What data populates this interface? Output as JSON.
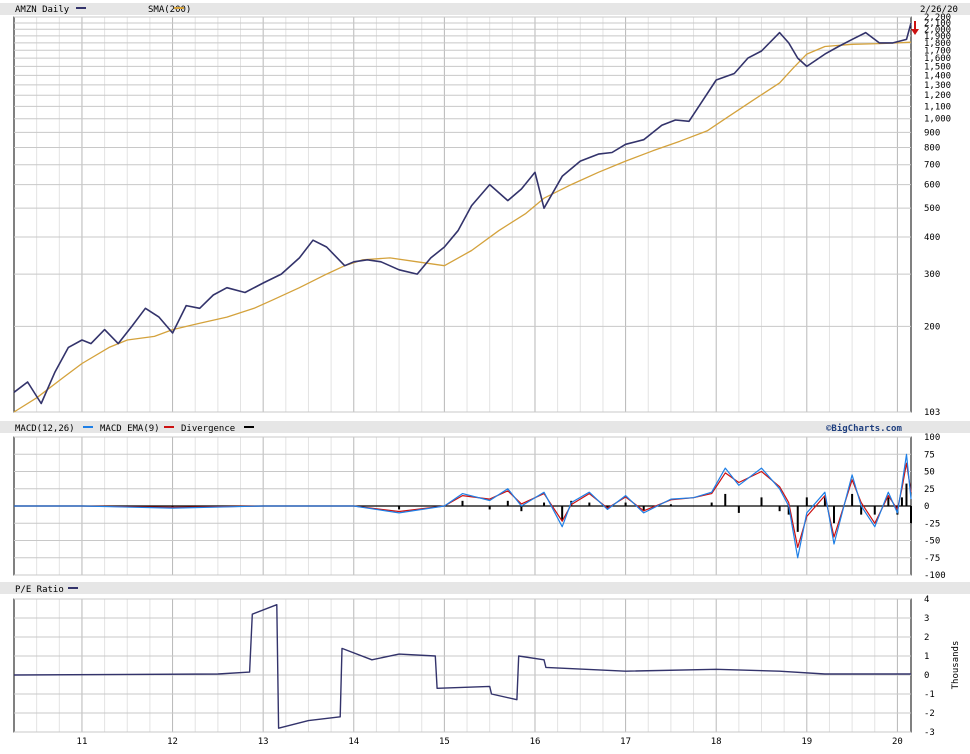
{
  "chart_data": [
    {
      "panel": "price",
      "type": "line",
      "scale": "log",
      "legend": [
        {
          "label": "AMZN Daily",
          "color": "#33336b"
        },
        {
          "label": "SMA(200)",
          "color": "#d4a23c"
        }
      ],
      "date_label": "2/26/20",
      "x_ticks": [
        "11",
        "12",
        "13",
        "14",
        "15",
        "16",
        "17",
        "18",
        "19",
        "20"
      ],
      "y_ticks": [
        "2,200",
        "2,100",
        "2,000",
        "1,900",
        "1,800",
        "1,700",
        "1,600",
        "1,500",
        "1,400",
        "1,300",
        "1,200",
        "1,100",
        "1,000",
        "900",
        "800",
        "700",
        "600",
        "500",
        "400",
        "300",
        "200",
        "103"
      ],
      "ylim": [
        103,
        2200
      ],
      "series": [
        {
          "name": "AMZN Daily",
          "color": "#33336b",
          "x": [
            2010.25,
            2010.4,
            2010.55,
            2010.7,
            2010.85,
            2011.0,
            2011.1,
            2011.25,
            2011.4,
            2011.55,
            2011.7,
            2011.85,
            2012.0,
            2012.15,
            2012.3,
            2012.45,
            2012.6,
            2012.8,
            2013.0,
            2013.2,
            2013.4,
            2013.55,
            2013.7,
            2013.9,
            2014.0,
            2014.15,
            2014.3,
            2014.5,
            2014.7,
            2014.85,
            2015.0,
            2015.15,
            2015.3,
            2015.5,
            2015.7,
            2015.85,
            2016.0,
            2016.1,
            2016.3,
            2016.5,
            2016.7,
            2016.85,
            2017.0,
            2017.2,
            2017.4,
            2017.55,
            2017.7,
            2017.85,
            2018.0,
            2018.2,
            2018.35,
            2018.5,
            2018.7,
            2018.8,
            2018.9,
            2019.0,
            2019.2,
            2019.35,
            2019.5,
            2019.65,
            2019.8,
            2019.95,
            2020.1,
            2020.15
          ],
          "y": [
            120,
            130,
            110,
            140,
            170,
            180,
            175,
            195,
            175,
            200,
            230,
            215,
            190,
            235,
            230,
            255,
            270,
            260,
            280,
            300,
            340,
            390,
            370,
            320,
            330,
            335,
            330,
            310,
            300,
            340,
            370,
            420,
            510,
            600,
            530,
            580,
            660,
            500,
            640,
            720,
            760,
            770,
            820,
            850,
            950,
            990,
            980,
            1150,
            1350,
            1420,
            1600,
            1690,
            1950,
            1800,
            1600,
            1500,
            1650,
            1750,
            1850,
            1950,
            1800,
            1800,
            1850,
            2100
          ]
        },
        {
          "name": "SMA(200)",
          "color": "#d4a23c",
          "x": [
            2010.25,
            2010.5,
            2010.8,
            2011.0,
            2011.3,
            2011.5,
            2011.8,
            2012.0,
            2012.3,
            2012.6,
            2012.9,
            2013.1,
            2013.4,
            2013.7,
            2013.9,
            2014.1,
            2014.4,
            2014.7,
            2015.0,
            2015.3,
            2015.6,
            2015.9,
            2016.1,
            2016.4,
            2016.7,
            2017.0,
            2017.3,
            2017.6,
            2017.9,
            2018.1,
            2018.4,
            2018.7,
            2018.85,
            2019.0,
            2019.2,
            2019.5,
            2019.8,
            2020.0,
            2020.15
          ],
          "y": [
            103,
            115,
            135,
            150,
            170,
            180,
            185,
            195,
            205,
            215,
            230,
            245,
            270,
            300,
            320,
            335,
            340,
            330,
            320,
            360,
            420,
            480,
            540,
            600,
            660,
            720,
            780,
            840,
            910,
            1000,
            1150,
            1320,
            1480,
            1650,
            1750,
            1780,
            1790,
            1800,
            1810
          ]
        }
      ]
    },
    {
      "panel": "macd",
      "type": "line",
      "legend": [
        {
          "label": "MACD(12,26)",
          "color": "#1e7fe6"
        },
        {
          "label": "MACD EMA(9)",
          "color": "#cc1111"
        },
        {
          "label": "Divergence",
          "color": "#000000"
        }
      ],
      "brand": "©BigCharts.com",
      "y_ticks": [
        "100",
        "75",
        "50",
        "25",
        "0",
        "-25",
        "-50",
        "-75",
        "-100"
      ],
      "ylim": [
        -100,
        100
      ],
      "series": [
        {
          "name": "MACD(12,26)",
          "color": "#1e7fe6",
          "x": [
            2010.25,
            2011.0,
            2012.0,
            2013.0,
            2014.0,
            2014.5,
            2015.0,
            2015.2,
            2015.5,
            2015.7,
            2015.85,
            2016.1,
            2016.3,
            2016.4,
            2016.6,
            2016.8,
            2017.0,
            2017.2,
            2017.5,
            2017.75,
            2017.95,
            2018.1,
            2018.25,
            2018.5,
            2018.7,
            2018.8,
            2018.9,
            2019.0,
            2019.2,
            2019.3,
            2019.5,
            2019.6,
            2019.75,
            2019.9,
            2020.0,
            2020.05,
            2020.1,
            2020.15
          ],
          "y": [
            0,
            0,
            -3,
            0,
            0,
            -10,
            0,
            18,
            8,
            25,
            0,
            20,
            -30,
            5,
            20,
            -5,
            15,
            -10,
            10,
            12,
            20,
            55,
            30,
            55,
            25,
            0,
            -75,
            -10,
            20,
            -55,
            45,
            0,
            -30,
            20,
            -10,
            30,
            75,
            10
          ]
        },
        {
          "name": "MACD EMA(9)",
          "color": "#cc1111",
          "x": [
            2010.25,
            2011.0,
            2012.0,
            2013.0,
            2014.0,
            2014.5,
            2015.0,
            2015.2,
            2015.5,
            2015.7,
            2015.85,
            2016.1,
            2016.3,
            2016.4,
            2016.6,
            2016.8,
            2017.0,
            2017.2,
            2017.5,
            2017.75,
            2017.95,
            2018.1,
            2018.25,
            2018.5,
            2018.7,
            2018.8,
            2018.9,
            2019.0,
            2019.2,
            2019.3,
            2019.5,
            2019.6,
            2019.75,
            2019.9,
            2020.0,
            2020.05,
            2020.1,
            2020.15
          ],
          "y": [
            0,
            0,
            -2,
            0,
            0,
            -8,
            0,
            15,
            10,
            22,
            3,
            18,
            -22,
            2,
            18,
            -3,
            13,
            -7,
            9,
            12,
            18,
            48,
            34,
            50,
            28,
            5,
            -60,
            -15,
            15,
            -45,
            38,
            5,
            -25,
            15,
            -5,
            25,
            62,
            20
          ]
        }
      ]
    },
    {
      "panel": "pe",
      "type": "line",
      "legend": [
        {
          "label": "P/E Ratio",
          "color": "#33336b"
        }
      ],
      "ylabel": "Thousands",
      "y_ticks": [
        "4",
        "3",
        "2",
        "1",
        "0",
        "-1",
        "-2",
        "-3"
      ],
      "ylim": [
        -3,
        4
      ],
      "series": [
        {
          "name": "P/E Ratio",
          "color": "#33336b",
          "x": [
            2010.25,
            2012.5,
            2012.85,
            2012.88,
            2013.15,
            2013.17,
            2013.5,
            2013.85,
            2013.87,
            2014.2,
            2014.5,
            2014.9,
            2014.92,
            2015.5,
            2015.52,
            2015.8,
            2015.82,
            2016.1,
            2016.12,
            2017.0,
            2018.0,
            2018.7,
            2019.2,
            2020.15
          ],
          "y": [
            0.0,
            0.05,
            0.15,
            3.2,
            3.7,
            -2.8,
            -2.4,
            -2.2,
            1.4,
            0.8,
            1.1,
            1.0,
            -0.7,
            -0.6,
            -1.0,
            -1.3,
            1.0,
            0.8,
            0.4,
            0.2,
            0.3,
            0.2,
            0.05,
            0.05
          ]
        }
      ]
    }
  ]
}
